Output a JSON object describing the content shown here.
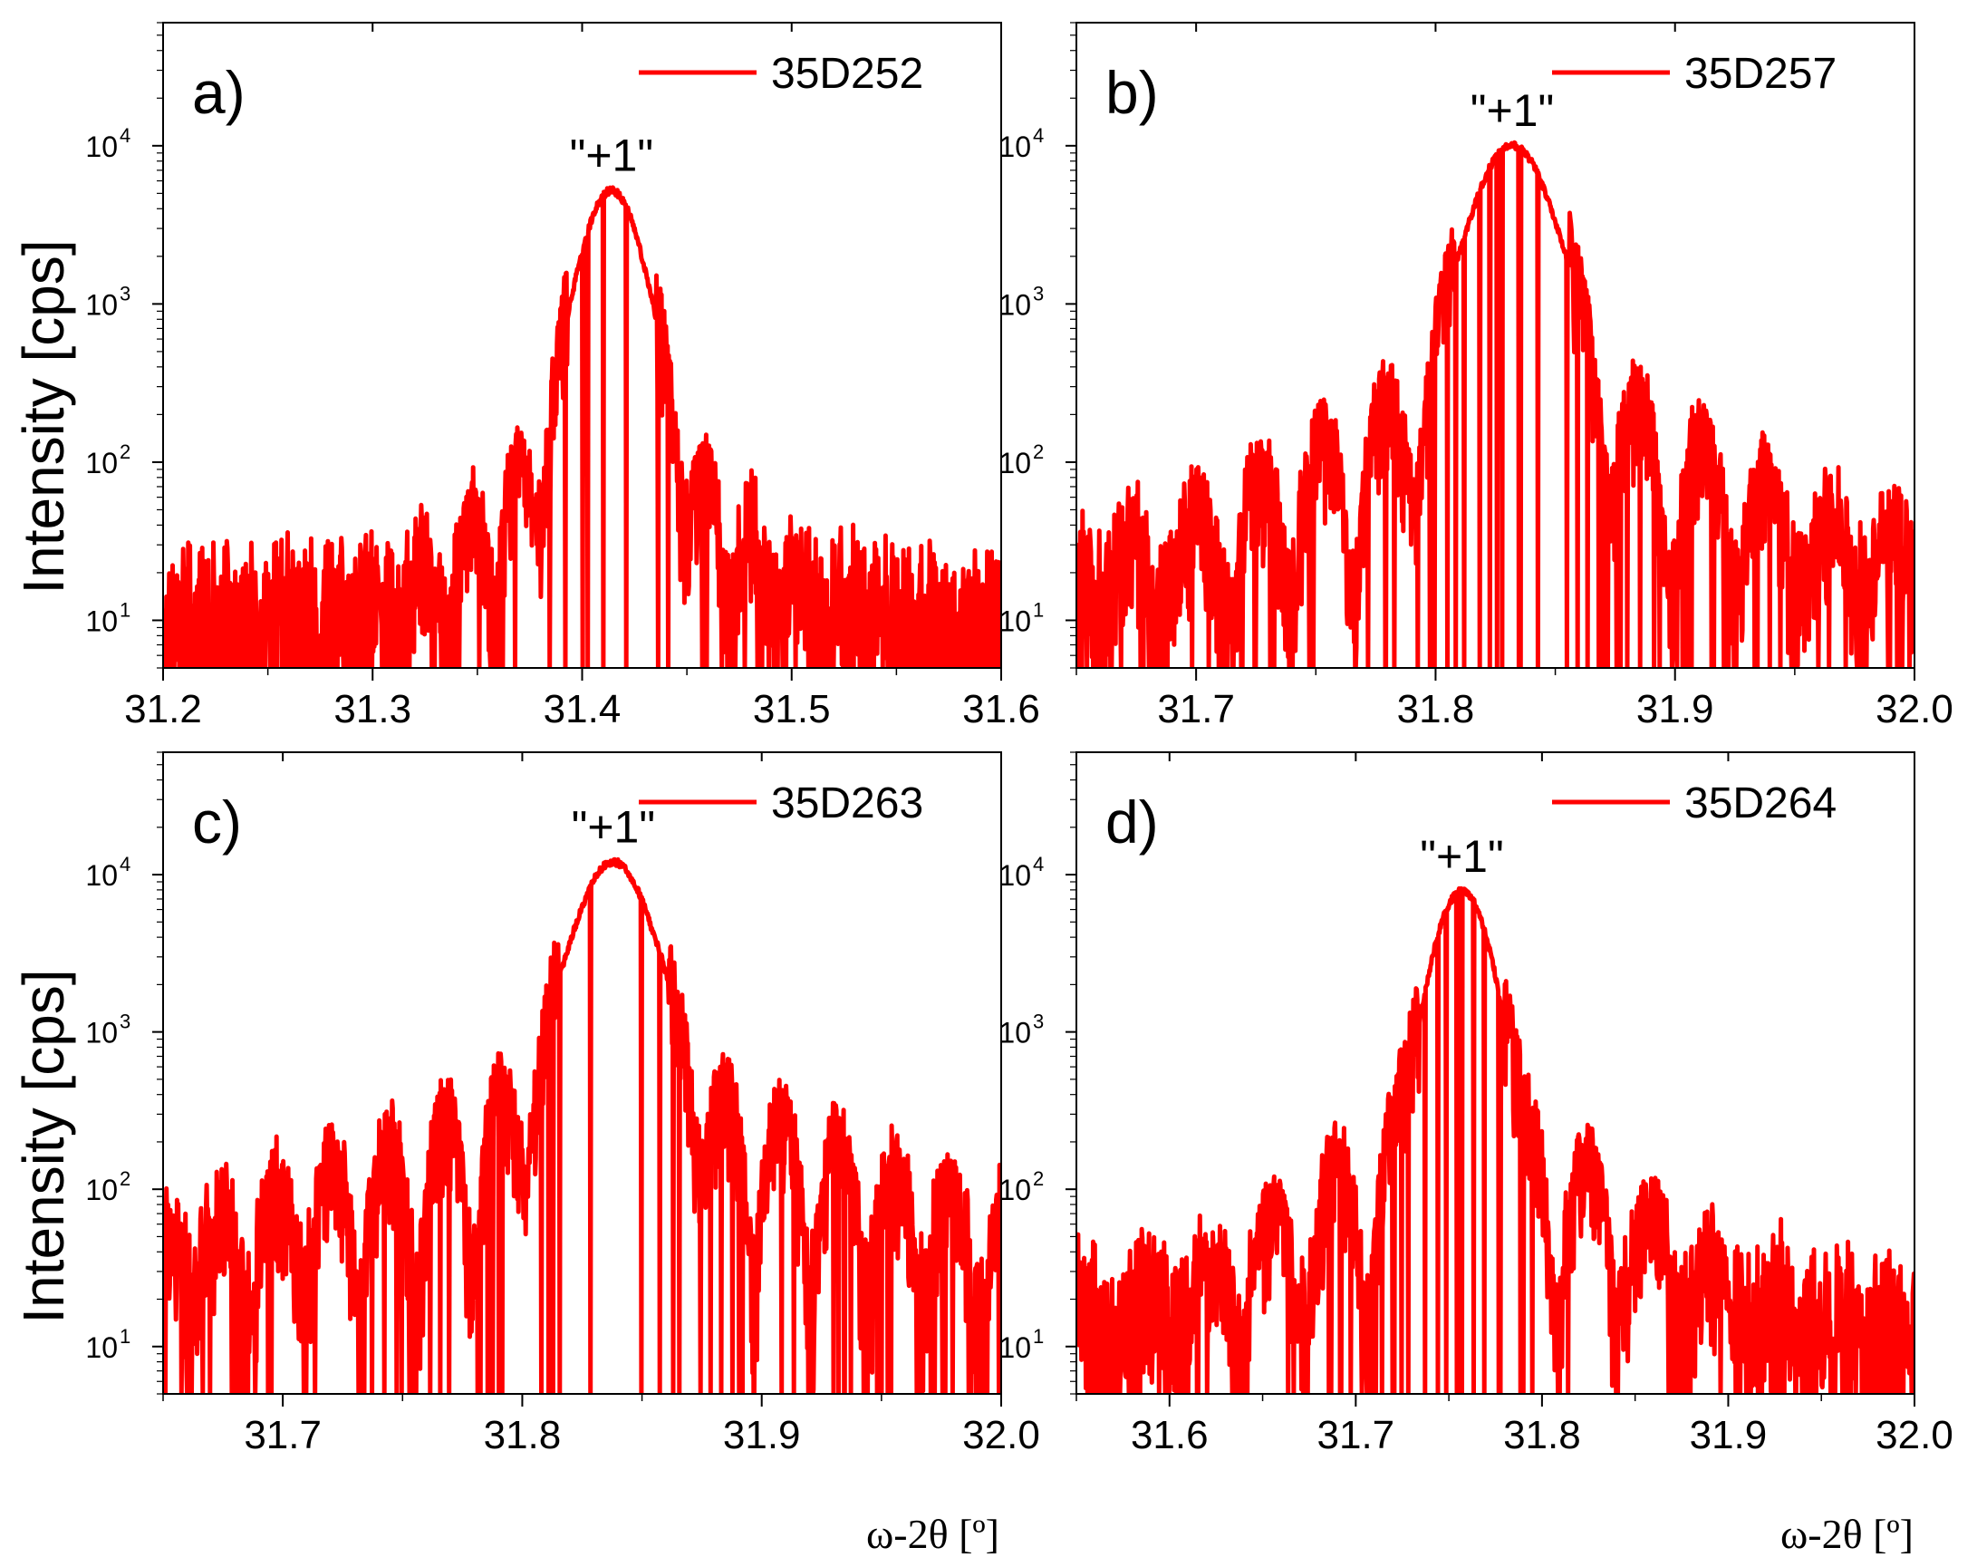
{
  "figure": {
    "y_axis_label": "Intensity [cps]",
    "x_axis_label": "ω-2θ [º]",
    "line_color": "#ff0000"
  },
  "chart_data": [
    {
      "type": "line",
      "panel": "a)",
      "legend": "35D252",
      "annotation": "\"+1\"",
      "xlim": [
        31.2,
        31.6
      ],
      "xticks": [
        "31.2",
        "31.3",
        "31.4",
        "31.5",
        "31.6"
      ],
      "ylim": [
        5,
        60000
      ],
      "yscale": "log",
      "yticks": [
        {
          "base": "10",
          "exp": "1"
        },
        {
          "base": "10",
          "exp": "2"
        },
        {
          "base": "10",
          "exp": "3"
        },
        {
          "base": "10",
          "exp": "4"
        }
      ],
      "peak": {
        "x": 31.414,
        "y": 5200
      },
      "fringe_period": 0.0225,
      "fringe_decay": 0.028,
      "background": 10,
      "width": 0.0105
    },
    {
      "type": "line",
      "panel": "b)",
      "legend": "35D257",
      "annotation": "\"+1\"",
      "xlim": [
        31.65,
        32.0
      ],
      "xticks": [
        "31.7",
        "31.8",
        "31.9",
        "32.0"
      ],
      "ylim": [
        5,
        60000
      ],
      "yscale": "log",
      "yticks": [
        {
          "base": "10",
          "exp": "1"
        },
        {
          "base": "10",
          "exp": "2"
        },
        {
          "base": "10",
          "exp": "3"
        },
        {
          "base": "10",
          "exp": "4"
        }
      ],
      "peak": {
        "x": 31.832,
        "y": 10000
      },
      "fringe_period": 0.0265,
      "fringe_decay": 0.045,
      "background": 12,
      "width": 0.012
    },
    {
      "type": "line",
      "panel": "c)",
      "legend": "35D263",
      "annotation": "\"+1\"",
      "xlim": [
        31.65,
        32.0
      ],
      "xticks": [
        "31.7",
        "31.8",
        "31.9",
        "32.0"
      ],
      "ylim": [
        5,
        60000
      ],
      "yscale": "log",
      "yticks": [
        {
          "base": "10",
          "exp": "1"
        },
        {
          "base": "10",
          "exp": "2"
        },
        {
          "base": "10",
          "exp": "3"
        },
        {
          "base": "10",
          "exp": "4"
        }
      ],
      "peak": {
        "x": 31.838,
        "y": 12000
      },
      "fringe_period": 0.0235,
      "fringe_decay": 0.06,
      "background": 18,
      "width": 0.0115
    },
    {
      "type": "line",
      "panel": "d)",
      "legend": "35D264",
      "annotation": "\"+1\"",
      "xlim": [
        31.55,
        32.0
      ],
      "xticks": [
        "31.6",
        "31.7",
        "31.8",
        "31.9",
        "32.0"
      ],
      "ylim": [
        5,
        60000
      ],
      "yscale": "log",
      "yticks": [
        {
          "base": "10",
          "exp": "1"
        },
        {
          "base": "10",
          "exp": "2"
        },
        {
          "base": "10",
          "exp": "3"
        },
        {
          "base": "10",
          "exp": "4"
        }
      ],
      "peak": {
        "x": 31.757,
        "y": 7800
      },
      "fringe_period": 0.034,
      "fringe_decay": 0.045,
      "background": 12,
      "width": 0.0115
    }
  ]
}
